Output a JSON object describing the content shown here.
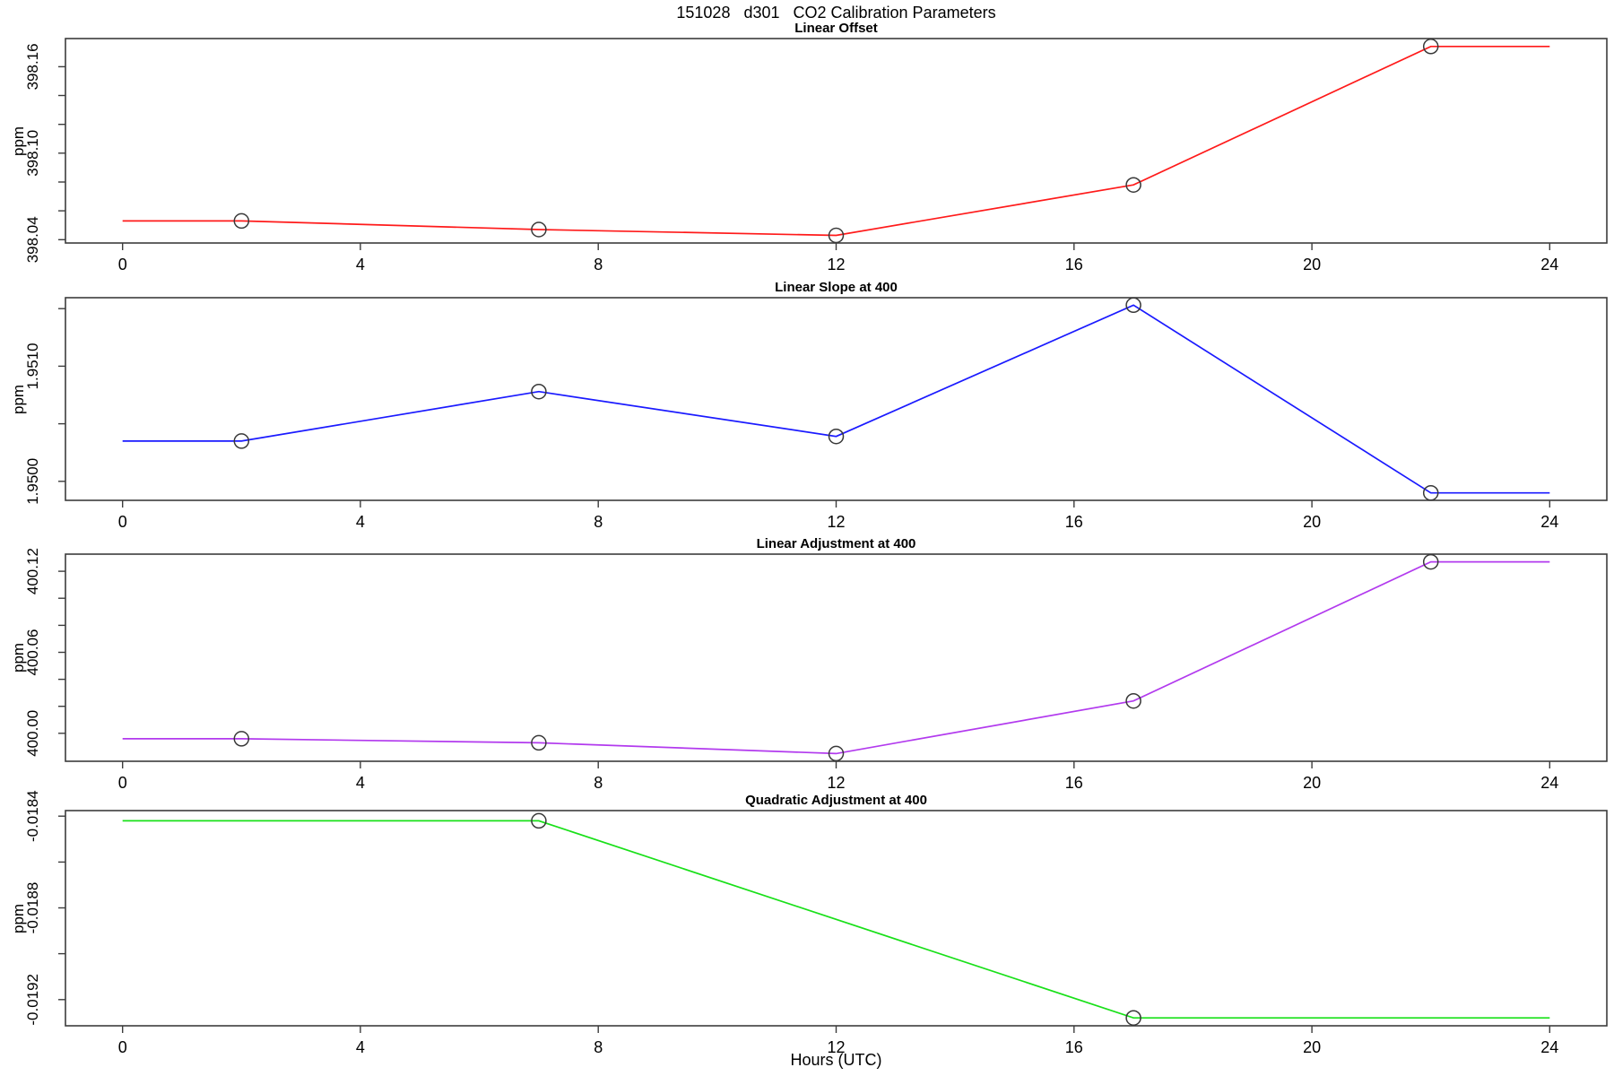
{
  "title": "151028   d301   CO2 Calibration Parameters",
  "x_axis": {
    "label": "Hours (UTC)",
    "ticks": [
      0,
      4,
      8,
      12,
      16,
      20,
      24
    ],
    "lim": [
      -0.96,
      24.96
    ]
  },
  "line_extends": [
    0,
    24
  ],
  "marker": {
    "shape": "open-circle",
    "color": "#383838"
  },
  "chart_data": [
    {
      "type": "line",
      "title": "Linear Offset",
      "ylabel": "ppm",
      "color": "#ff1a1a",
      "x": [
        2,
        7,
        12,
        17,
        22
      ],
      "values": [
        398.053,
        398.047,
        398.043,
        398.078,
        398.174
      ],
      "ylim": [
        398.0377,
        398.1795
      ],
      "yticks": [
        {
          "value": 398.04,
          "label": "398.04"
        },
        {
          "value": 398.06,
          "label": ""
        },
        {
          "value": 398.08,
          "label": ""
        },
        {
          "value": 398.1,
          "label": "398.10"
        },
        {
          "value": 398.12,
          "label": ""
        },
        {
          "value": 398.14,
          "label": ""
        },
        {
          "value": 398.16,
          "label": "398.16"
        }
      ]
    },
    {
      "type": "line",
      "title": "Linear Slope at 400",
      "ylabel": "ppm",
      "color": "#1a1aff",
      "x": [
        2,
        7,
        12,
        17,
        22
      ],
      "values": [
        1.95035,
        1.95078,
        1.95039,
        1.95153,
        1.9499
      ],
      "ylim": [
        1.949835,
        1.951595
      ],
      "yticks": [
        {
          "value": 1.95,
          "label": "1.9500"
        },
        {
          "value": 1.9505,
          "label": ""
        },
        {
          "value": 1.951,
          "label": "1.9510"
        },
        {
          "value": 1.9515,
          "label": ""
        }
      ]
    },
    {
      "type": "line",
      "title": "Linear Adjustment at 400",
      "ylabel": "ppm",
      "color": "#b23aee",
      "x": [
        2,
        7,
        12,
        17,
        22
      ],
      "values": [
        399.996,
        399.993,
        399.985,
        400.024,
        400.127
      ],
      "ylim": [
        399.9793,
        400.1327
      ],
      "yticks": [
        {
          "value": 400.0,
          "label": "400.00"
        },
        {
          "value": 400.02,
          "label": ""
        },
        {
          "value": 400.04,
          "label": ""
        },
        {
          "value": 400.06,
          "label": "400.06"
        },
        {
          "value": 400.08,
          "label": ""
        },
        {
          "value": 400.1,
          "label": ""
        },
        {
          "value": 400.12,
          "label": "400.12"
        }
      ]
    },
    {
      "type": "line",
      "title": "Quadratic Adjustment at 400",
      "ylabel": "ppm",
      "color": "#19e019",
      "x": [
        7,
        17
      ],
      "values": [
        -0.01842,
        -0.01928
      ],
      "ylim": [
        -0.0193144,
        -0.0183756
      ],
      "yticks": [
        {
          "value": -0.0192,
          "label": "-0.0192"
        },
        {
          "value": -0.019,
          "label": ""
        },
        {
          "value": -0.0188,
          "label": "-0.0188"
        },
        {
          "value": -0.0186,
          "label": ""
        },
        {
          "value": -0.0184,
          "label": "-0.0184"
        }
      ]
    }
  ]
}
